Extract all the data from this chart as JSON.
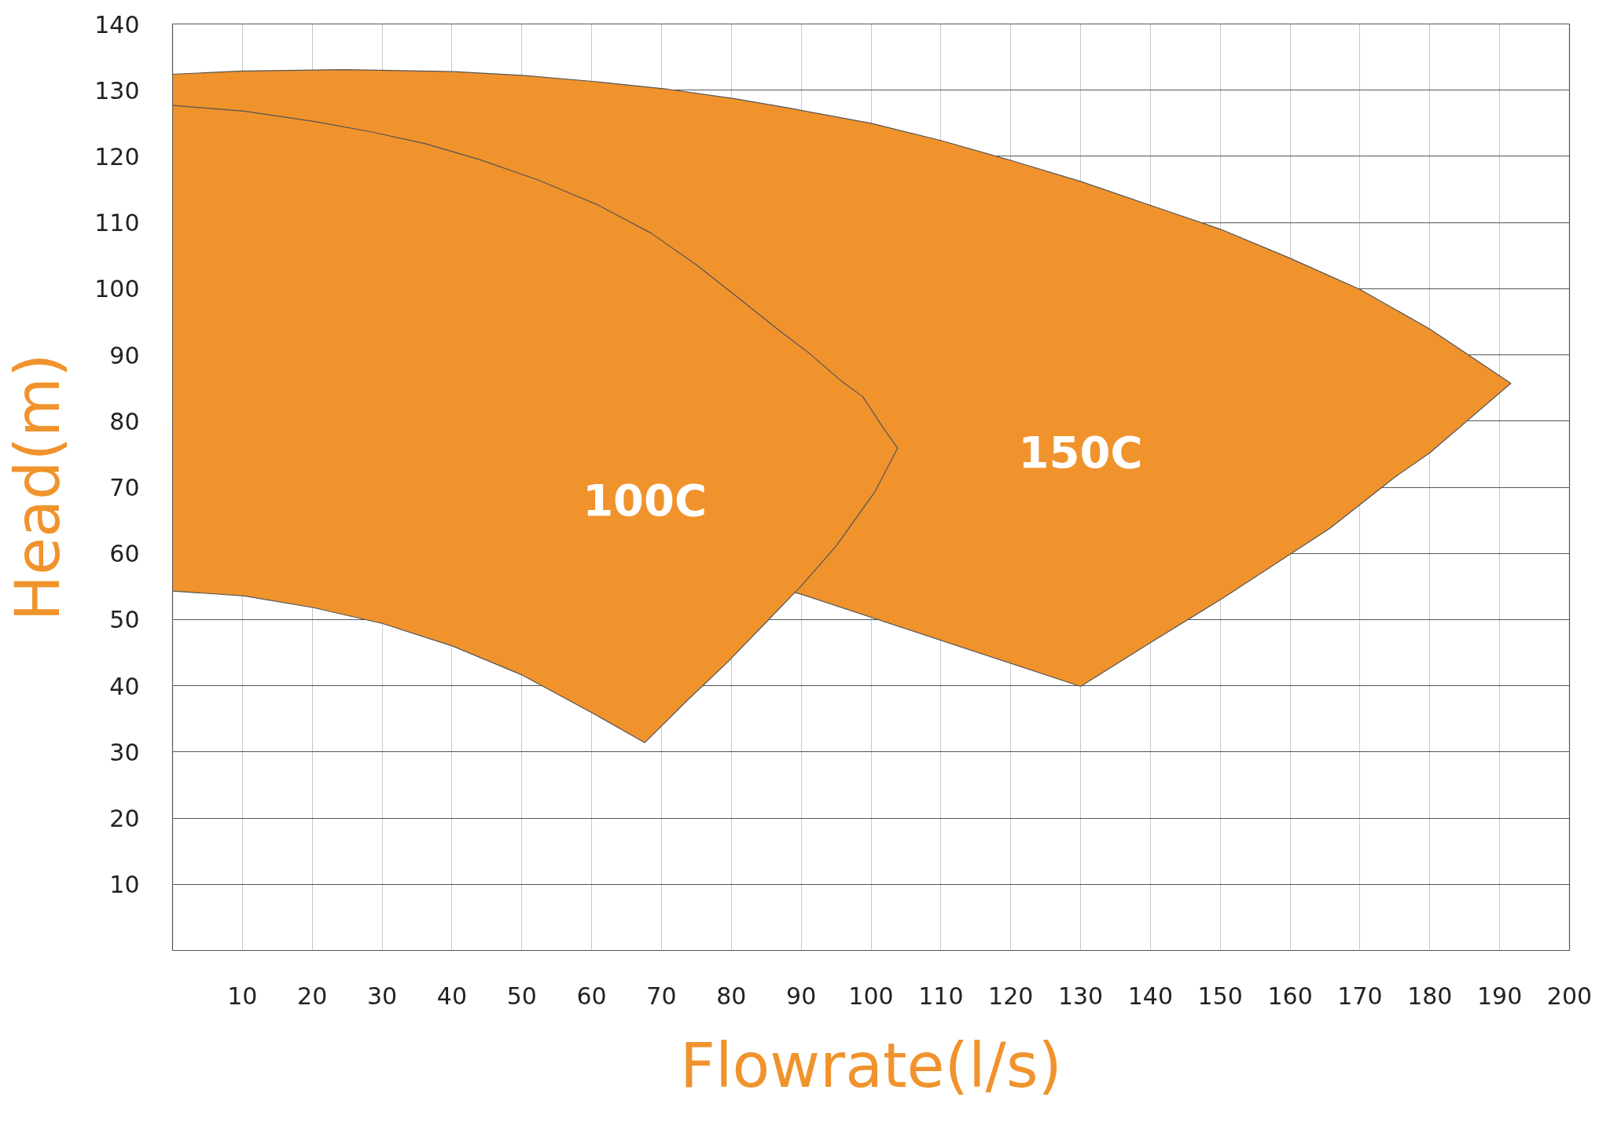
{
  "chart_data": {
    "type": "area",
    "xlabel": "Flowrate(l/s)",
    "ylabel": "Head(m)",
    "xlim": [
      0,
      200
    ],
    "ylim": [
      0,
      140
    ],
    "xticks": [
      10,
      20,
      30,
      40,
      50,
      60,
      70,
      80,
      90,
      100,
      110,
      120,
      130,
      140,
      150,
      160,
      170,
      180,
      190,
      200
    ],
    "yticks": [
      10,
      20,
      30,
      40,
      50,
      60,
      70,
      80,
      90,
      100,
      110,
      120,
      130,
      140
    ],
    "grid": true,
    "series": [
      {
        "name": "150C",
        "color": "#f0932d",
        "x": [
          0,
          10,
          24.6,
          40.3,
          50.4,
          60.4,
          70.5,
          80.5,
          88.2,
          100,
          110,
          120,
          130,
          140,
          150,
          160,
          170,
          180,
          184.8,
          191.6,
          180,
          175.1,
          165.7,
          150.6,
          140.6,
          130,
          90.1,
          0
        ],
        "values": [
          132.4,
          132.9,
          133.1,
          132.8,
          132.2,
          131.3,
          130.2,
          128.7,
          127.3,
          125.0,
          122.4,
          119.4,
          116.2,
          112.6,
          109.0,
          104.6,
          99.9,
          93.9,
          90.5,
          85.7,
          75.2,
          71.6,
          63.8,
          53.4,
          46.9,
          39.9,
          53.8,
          79.8
        ]
      },
      {
        "name": "100C",
        "color": "#f0932d",
        "x": [
          0,
          10.4,
          20.7,
          28.4,
          36.2,
          44.0,
          52.4,
          60.8,
          68.5,
          75.0,
          81.5,
          86.6,
          91.2,
          95.7,
          98.8,
          101.8,
          103.8,
          100.6,
          95.0,
          90.1,
          84.8,
          79.4,
          73.6,
          67.6,
          60.1,
          50.1,
          40.1,
          30.1,
          20.2,
          10.1,
          0
        ],
        "values": [
          127.7,
          126.8,
          125.2,
          123.7,
          121.9,
          119.5,
          116.4,
          112.7,
          108.4,
          103.6,
          98.2,
          93.9,
          90.2,
          86.1,
          83.7,
          78.9,
          75.9,
          69.4,
          61.1,
          55.2,
          49.4,
          43.5,
          37.7,
          31.4,
          35.9,
          41.6,
          46.0,
          49.4,
          51.8,
          53.6,
          54.3
        ]
      }
    ]
  }
}
